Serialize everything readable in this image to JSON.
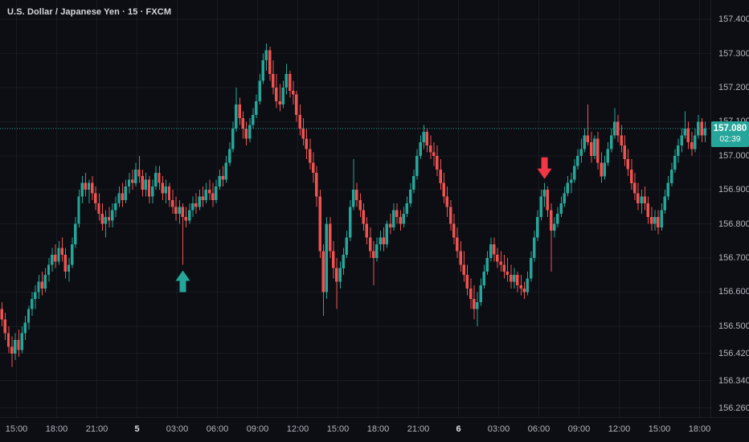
{
  "header": {
    "symbol_title": "U.S. Dollar / Japanese Yen · 15 · FXCM"
  },
  "last_price_label": {
    "price": "157.080",
    "countdown": "02:39"
  },
  "price_axis": {
    "labels": [
      "157.400",
      "157.300",
      "157.200",
      "157.100",
      "157.000",
      "156.900",
      "156.800",
      "156.700",
      "156.600",
      "156.500",
      "156.420",
      "156.340",
      "156.260"
    ]
  },
  "time_axis": {
    "labels": [
      "15:00",
      "18:00",
      "21:00",
      "5",
      "03:00",
      "06:00",
      "09:00",
      "12:00",
      "15:00",
      "18:00",
      "21:00",
      "6",
      "03:00",
      "06:00",
      "09:00",
      "12:00",
      "15:00",
      "18:00"
    ]
  },
  "markers": [
    {
      "name": "buy-signal",
      "shape": "arrow-up",
      "bar_index": 54,
      "color": "#26a69a"
    },
    {
      "name": "sell-signal",
      "shape": "arrow-down",
      "bar_index": 162,
      "color": "#f23645"
    }
  ],
  "colors": {
    "background": "#0c0e13",
    "up": "#26a69a",
    "down": "#ef5350",
    "grid": "rgba(240,243,250,0.055)",
    "axis_text": "#b2b5be",
    "title_text": "#d6d8dc",
    "badge_bg": "#26a69a",
    "dotted_line": "#26a69a"
  },
  "chart_data": {
    "type": "candlestick",
    "title": "U.S. Dollar / Japanese Yen",
    "interval": "15",
    "exchange": "FXCM",
    "last_price": 157.08,
    "countdown": "02:39",
    "y_axis_ticks": [
      157.4,
      157.3,
      157.2,
      157.1,
      157.0,
      156.9,
      156.8,
      156.7,
      156.6,
      156.5,
      156.42,
      156.34,
      156.26
    ],
    "x_axis_ticks": [
      "15:00",
      "18:00",
      "21:00",
      "5",
      "03:00",
      "06:00",
      "09:00",
      "12:00",
      "15:00",
      "18:00",
      "21:00",
      "6",
      "03:00",
      "06:00",
      "09:00",
      "12:00",
      "15:00",
      "18:00"
    ],
    "y_range_visible": [
      156.16,
      157.457
    ],
    "grid": true,
    "ohlc": [
      [
        156.55,
        156.57,
        156.5,
        156.52
      ],
      [
        156.52,
        156.54,
        156.46,
        156.48
      ],
      [
        156.48,
        156.5,
        156.42,
        156.44
      ],
      [
        156.44,
        156.47,
        156.38,
        156.42
      ],
      [
        156.42,
        156.48,
        156.4,
        156.46
      ],
      [
        156.46,
        156.49,
        156.41,
        156.43
      ],
      [
        156.43,
        156.5,
        156.42,
        156.48
      ],
      [
        156.48,
        156.53,
        156.46,
        156.51
      ],
      [
        156.51,
        156.56,
        156.49,
        156.55
      ],
      [
        156.55,
        156.6,
        156.53,
        156.58
      ],
      [
        156.58,
        156.62,
        156.55,
        156.6
      ],
      [
        156.6,
        156.65,
        156.58,
        156.63
      ],
      [
        156.63,
        156.66,
        156.59,
        156.61
      ],
      [
        156.61,
        156.67,
        156.6,
        156.65
      ],
      [
        156.65,
        156.7,
        156.63,
        156.68
      ],
      [
        156.68,
        156.73,
        156.66,
        156.71
      ],
      [
        156.71,
        156.74,
        156.67,
        156.69
      ],
      [
        156.69,
        156.75,
        156.68,
        156.73
      ],
      [
        156.73,
        156.76,
        156.69,
        156.71
      ],
      [
        156.71,
        156.73,
        156.64,
        156.66
      ],
      [
        156.66,
        156.7,
        156.63,
        156.68
      ],
      [
        156.68,
        156.76,
        156.67,
        156.74
      ],
      [
        156.74,
        156.82,
        156.73,
        156.8
      ],
      [
        156.8,
        156.9,
        156.79,
        156.88
      ],
      [
        156.88,
        156.94,
        156.86,
        156.92
      ],
      [
        156.92,
        156.95,
        156.88,
        156.9
      ],
      [
        156.9,
        156.93,
        156.86,
        156.92
      ],
      [
        156.92,
        156.94,
        156.87,
        156.89
      ],
      [
        156.89,
        156.91,
        156.84,
        156.86
      ],
      [
        156.86,
        156.89,
        156.81,
        156.83
      ],
      [
        156.83,
        156.86,
        156.78,
        156.8
      ],
      [
        156.8,
        156.84,
        156.76,
        156.82
      ],
      [
        156.82,
        156.85,
        156.79,
        156.81
      ],
      [
        156.81,
        156.86,
        156.79,
        156.84
      ],
      [
        156.84,
        156.88,
        156.82,
        156.86
      ],
      [
        156.86,
        156.91,
        156.85,
        156.89
      ],
      [
        156.89,
        156.92,
        156.85,
        156.87
      ],
      [
        156.87,
        156.93,
        156.86,
        156.91
      ],
      [
        156.91,
        156.95,
        156.89,
        156.93
      ],
      [
        156.93,
        156.96,
        156.9,
        156.92
      ],
      [
        156.92,
        156.98,
        156.91,
        156.96
      ],
      [
        156.96,
        157.0,
        156.92,
        156.94
      ],
      [
        156.94,
        156.96,
        156.88,
        156.9
      ],
      [
        156.9,
        156.95,
        156.88,
        156.93
      ],
      [
        156.93,
        156.94,
        156.86,
        156.88
      ],
      [
        156.88,
        156.93,
        156.86,
        156.91
      ],
      [
        156.91,
        156.97,
        156.9,
        156.95
      ],
      [
        156.95,
        156.97,
        156.9,
        156.92
      ],
      [
        156.92,
        156.94,
        156.87,
        156.89
      ],
      [
        156.89,
        156.93,
        156.86,
        156.91
      ],
      [
        156.91,
        156.92,
        156.85,
        156.87
      ],
      [
        156.87,
        156.9,
        156.83,
        156.85
      ],
      [
        156.85,
        156.88,
        156.81,
        156.83
      ],
      [
        156.83,
        156.87,
        156.8,
        156.85
      ],
      [
        156.85,
        156.86,
        156.68,
        156.82
      ],
      [
        156.82,
        156.85,
        156.79,
        156.81
      ],
      [
        156.81,
        156.86,
        156.8,
        156.84
      ],
      [
        156.84,
        156.88,
        156.82,
        156.86
      ],
      [
        156.86,
        156.89,
        156.83,
        156.85
      ],
      [
        156.85,
        156.9,
        156.84,
        156.88
      ],
      [
        156.88,
        156.91,
        156.85,
        156.87
      ],
      [
        156.87,
        156.92,
        156.86,
        156.9
      ],
      [
        156.9,
        156.93,
        156.87,
        156.89
      ],
      [
        156.89,
        156.92,
        156.85,
        156.87
      ],
      [
        156.87,
        156.93,
        156.86,
        156.91
      ],
      [
        156.91,
        156.96,
        156.9,
        156.94
      ],
      [
        156.94,
        156.97,
        156.91,
        156.93
      ],
      [
        156.93,
        157.0,
        156.92,
        156.98
      ],
      [
        156.98,
        157.04,
        156.97,
        157.02
      ],
      [
        157.02,
        157.1,
        157.01,
        157.08
      ],
      [
        157.08,
        157.2,
        157.07,
        157.15
      ],
      [
        157.15,
        157.17,
        157.09,
        157.11
      ],
      [
        157.11,
        157.13,
        157.05,
        157.08
      ],
      [
        157.08,
        157.1,
        157.03,
        157.05
      ],
      [
        157.05,
        157.11,
        157.04,
        157.09
      ],
      [
        157.09,
        157.14,
        157.08,
        157.12
      ],
      [
        157.12,
        157.18,
        157.11,
        157.16
      ],
      [
        157.16,
        157.24,
        157.15,
        157.22
      ],
      [
        157.22,
        157.3,
        157.21,
        157.28
      ],
      [
        157.28,
        157.33,
        157.25,
        157.31
      ],
      [
        157.31,
        157.32,
        157.22,
        157.24
      ],
      [
        157.24,
        157.28,
        157.18,
        157.2
      ],
      [
        157.2,
        157.24,
        157.14,
        157.16
      ],
      [
        157.16,
        157.21,
        157.13,
        157.15
      ],
      [
        157.15,
        157.22,
        157.14,
        157.2
      ],
      [
        157.2,
        157.27,
        157.18,
        157.24
      ],
      [
        157.24,
        157.25,
        157.17,
        157.19
      ],
      [
        157.19,
        157.22,
        157.15,
        157.18
      ],
      [
        157.18,
        157.19,
        157.1,
        157.12
      ],
      [
        157.12,
        157.15,
        157.06,
        157.08
      ],
      [
        157.08,
        157.11,
        157.03,
        157.05
      ],
      [
        157.05,
        157.08,
        156.99,
        157.02
      ],
      [
        157.02,
        157.05,
        156.96,
        156.98
      ],
      [
        156.98,
        157.01,
        156.92,
        156.95
      ],
      [
        156.95,
        156.97,
        156.85,
        156.88
      ],
      [
        156.88,
        156.9,
        156.7,
        156.72
      ],
      [
        156.72,
        156.74,
        156.53,
        156.6
      ],
      [
        156.6,
        156.82,
        156.58,
        156.8
      ],
      [
        156.8,
        156.82,
        156.7,
        156.72
      ],
      [
        156.72,
        156.75,
        156.64,
        156.67
      ],
      [
        156.67,
        156.7,
        156.55,
        156.63
      ],
      [
        156.63,
        156.69,
        156.61,
        156.67
      ],
      [
        156.67,
        156.73,
        156.65,
        156.71
      ],
      [
        156.71,
        156.78,
        156.7,
        156.76
      ],
      [
        156.76,
        156.87,
        156.75,
        156.85
      ],
      [
        156.85,
        156.99,
        156.84,
        156.9
      ],
      [
        156.9,
        156.92,
        156.85,
        156.87
      ],
      [
        156.87,
        156.89,
        156.82,
        156.84
      ],
      [
        156.84,
        156.86,
        156.78,
        156.8
      ],
      [
        156.8,
        156.82,
        156.74,
        156.76
      ],
      [
        156.76,
        156.79,
        156.7,
        156.72
      ],
      [
        156.72,
        156.75,
        156.62,
        156.7
      ],
      [
        156.7,
        156.76,
        156.69,
        156.74
      ],
      [
        156.74,
        156.78,
        156.72,
        156.76
      ],
      [
        156.76,
        156.79,
        156.72,
        156.74
      ],
      [
        156.74,
        156.81,
        156.73,
        156.8
      ],
      [
        156.8,
        156.83,
        156.77,
        156.79
      ],
      [
        156.79,
        156.86,
        156.78,
        156.84
      ],
      [
        156.84,
        156.86,
        156.8,
        156.82
      ],
      [
        156.82,
        156.84,
        156.78,
        156.8
      ],
      [
        156.8,
        156.85,
        156.79,
        156.83
      ],
      [
        156.83,
        156.88,
        156.82,
        156.86
      ],
      [
        156.86,
        156.92,
        156.85,
        156.9
      ],
      [
        156.9,
        156.96,
        156.89,
        156.94
      ],
      [
        156.94,
        157.02,
        156.93,
        157.0
      ],
      [
        157.0,
        157.06,
        156.99,
        157.04
      ],
      [
        157.04,
        157.09,
        157.02,
        157.07
      ],
      [
        157.07,
        157.08,
        157.01,
        157.03
      ],
      [
        157.03,
        157.06,
        156.99,
        157.01
      ],
      [
        157.01,
        157.04,
        156.97,
        157.0
      ],
      [
        157.0,
        157.03,
        156.94,
        156.96
      ],
      [
        156.96,
        156.99,
        156.9,
        156.92
      ],
      [
        156.92,
        156.95,
        156.86,
        156.88
      ],
      [
        156.88,
        156.91,
        156.82,
        156.85
      ],
      [
        156.85,
        156.87,
        156.78,
        156.8
      ],
      [
        156.8,
        156.83,
        156.74,
        156.76
      ],
      [
        156.76,
        156.79,
        156.7,
        156.72
      ],
      [
        156.72,
        156.75,
        156.66,
        156.68
      ],
      [
        156.68,
        156.72,
        156.63,
        156.65
      ],
      [
        156.65,
        156.68,
        156.59,
        156.61
      ],
      [
        156.61,
        156.64,
        156.55,
        156.58
      ],
      [
        156.58,
        156.62,
        156.52,
        156.55
      ],
      [
        156.55,
        156.6,
        156.5,
        156.57
      ],
      [
        156.57,
        156.64,
        156.56,
        156.62
      ],
      [
        156.62,
        156.68,
        156.61,
        156.66
      ],
      [
        156.66,
        156.72,
        156.65,
        156.7
      ],
      [
        156.7,
        156.76,
        156.69,
        156.74
      ],
      [
        156.74,
        156.76,
        156.69,
        156.71
      ],
      [
        156.71,
        156.73,
        156.67,
        156.69
      ],
      [
        156.69,
        156.72,
        156.66,
        156.68
      ],
      [
        156.68,
        156.71,
        156.64,
        156.66
      ],
      [
        156.66,
        156.7,
        156.63,
        156.65
      ],
      [
        156.65,
        156.68,
        156.61,
        156.63
      ],
      [
        156.63,
        156.67,
        156.61,
        156.65
      ],
      [
        156.65,
        156.66,
        156.6,
        156.62
      ],
      [
        156.62,
        156.65,
        156.59,
        156.61
      ],
      [
        156.61,
        156.63,
        156.58,
        156.6
      ],
      [
        156.6,
        156.66,
        156.59,
        156.64
      ],
      [
        156.64,
        156.72,
        156.63,
        156.7
      ],
      [
        156.7,
        156.78,
        156.69,
        156.76
      ],
      [
        156.76,
        156.84,
        156.75,
        156.82
      ],
      [
        156.82,
        156.9,
        156.81,
        156.88
      ],
      [
        156.88,
        156.92,
        156.85,
        156.9
      ],
      [
        156.9,
        156.91,
        156.82,
        156.84
      ],
      [
        156.84,
        156.86,
        156.66,
        156.78
      ],
      [
        156.78,
        156.82,
        156.76,
        156.8
      ],
      [
        156.8,
        156.85,
        156.79,
        156.83
      ],
      [
        156.83,
        156.88,
        156.82,
        156.86
      ],
      [
        156.86,
        156.91,
        156.85,
        156.89
      ],
      [
        156.89,
        156.94,
        156.88,
        156.92
      ],
      [
        156.92,
        156.95,
        156.89,
        156.93
      ],
      [
        156.93,
        156.99,
        156.92,
        156.97
      ],
      [
        156.97,
        157.02,
        156.96,
        157.0
      ],
      [
        157.0,
        157.05,
        156.98,
        157.02
      ],
      [
        157.02,
        157.08,
        157.01,
        157.06
      ],
      [
        157.06,
        157.15,
        157.03,
        157.04
      ],
      [
        157.04,
        157.07,
        156.98,
        157.0
      ],
      [
        157.0,
        157.06,
        156.99,
        157.05
      ],
      [
        157.05,
        157.07,
        156.96,
        156.98
      ],
      [
        156.98,
        157.01,
        156.92,
        156.94
      ],
      [
        156.94,
        157.0,
        156.93,
        156.98
      ],
      [
        156.98,
        157.04,
        156.97,
        157.02
      ],
      [
        157.02,
        157.08,
        157.01,
        157.06
      ],
      [
        157.06,
        157.14,
        157.05,
        157.1
      ],
      [
        157.1,
        157.12,
        157.04,
        157.06
      ],
      [
        157.06,
        157.09,
        157.01,
        157.03
      ],
      [
        157.03,
        157.06,
        156.97,
        156.99
      ],
      [
        156.99,
        157.02,
        156.94,
        156.96
      ],
      [
        156.96,
        156.99,
        156.9,
        156.92
      ],
      [
        156.92,
        156.95,
        156.87,
        156.89
      ],
      [
        156.89,
        156.92,
        156.84,
        156.86
      ],
      [
        156.86,
        156.9,
        156.83,
        156.88
      ],
      [
        156.88,
        156.91,
        156.84,
        156.86
      ],
      [
        156.86,
        156.88,
        156.8,
        156.82
      ],
      [
        156.82,
        156.85,
        156.78,
        156.8
      ],
      [
        156.8,
        156.84,
        156.78,
        156.82
      ],
      [
        156.82,
        156.84,
        156.77,
        156.79
      ],
      [
        156.79,
        156.86,
        156.78,
        156.84
      ],
      [
        156.84,
        156.9,
        156.83,
        156.88
      ],
      [
        156.88,
        156.94,
        156.87,
        156.92
      ],
      [
        156.92,
        156.98,
        156.91,
        156.96
      ],
      [
        156.96,
        157.02,
        156.95,
        157.0
      ],
      [
        157.0,
        157.05,
        156.98,
        157.03
      ],
      [
        157.03,
        157.08,
        157.01,
        157.06
      ],
      [
        157.06,
        157.13,
        157.05,
        157.08
      ],
      [
        157.08,
        157.1,
        157.02,
        157.04
      ],
      [
        157.04,
        157.07,
        157.0,
        157.02
      ],
      [
        157.02,
        157.08,
        157.01,
        157.06
      ],
      [
        157.06,
        157.12,
        157.05,
        157.1
      ],
      [
        157.1,
        157.11,
        157.04,
        157.06
      ],
      [
        157.06,
        157.1,
        157.04,
        157.08
      ]
    ]
  }
}
